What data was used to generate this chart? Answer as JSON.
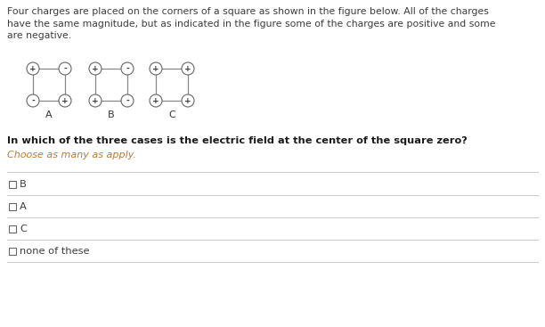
{
  "title_lines": [
    "Four charges are placed on the corners of a square as shown in the figure below. All of the charges",
    "have the same magnitude, but as indicated in the figure some of the charges are positive and some",
    "are negative."
  ],
  "question_text": "In which of the three cases is the electric field at the center of the square zero?",
  "instruction_text": "Choose as many as apply.",
  "cases": [
    {
      "label": "A",
      "charges": [
        [
          "+",
          "-"
        ],
        [
          "-",
          "+"
        ]
      ]
    },
    {
      "label": "B",
      "charges": [
        [
          "+",
          "-"
        ],
        [
          "+",
          "-"
        ]
      ]
    },
    {
      "label": "C",
      "charges": [
        [
          "+",
          "+"
        ],
        [
          "+",
          "+"
        ]
      ]
    }
  ],
  "options": [
    "B",
    "A",
    "C",
    "none of these"
  ],
  "bg_color": "#ffffff",
  "text_color": "#3d3d3d",
  "question_color": "#1a1a1a",
  "instruction_color": "#c07830",
  "circle_edge_color": "#666666",
  "line_color": "#888888",
  "divider_color": "#cccccc",
  "checkbox_color": "#666666",
  "sign_color": "#333333",
  "label_color": "#333333"
}
